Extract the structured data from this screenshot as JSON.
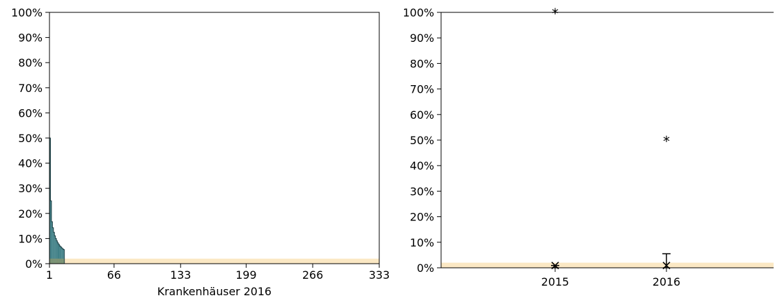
{
  "colors": {
    "bar_fill": "#3f7f86",
    "bar_stroke": "#1c3f44",
    "reference_band": "#fbe8c4",
    "reference_overlap": "#8a9670",
    "axis": "#000000"
  },
  "chart_data": [
    {
      "type": "bar",
      "xlabel": "Krankenhäuser 2016",
      "ylabel": "",
      "title": "",
      "ylim": [
        0,
        100
      ],
      "xlim": [
        1,
        333
      ],
      "y_ticks": [
        "0%",
        "10%",
        "20%",
        "30%",
        "40%",
        "50%",
        "60%",
        "70%",
        "80%",
        "90%",
        "100%"
      ],
      "x_ticks": [
        "1",
        "66",
        "133",
        "199",
        "266",
        "333"
      ],
      "x_tick_values": [
        1,
        66,
        133,
        199,
        266,
        333
      ],
      "reference_band": [
        0,
        2
      ],
      "values": [
        50,
        25,
        16.7,
        14.3,
        12.5,
        11.1,
        10,
        9.1,
        8.3,
        7.7,
        7.1,
        6.7,
        6.3,
        5.9,
        5.6
      ],
      "grid": false
    },
    {
      "type": "scatter",
      "xlabel": "",
      "ylabel": "",
      "title": "",
      "ylim": [
        0,
        100
      ],
      "categories": [
        "2015",
        "2016"
      ],
      "y_ticks": [
        "0%",
        "10%",
        "20%",
        "30%",
        "40%",
        "50%",
        "60%",
        "70%",
        "80%",
        "90%",
        "100%"
      ],
      "reference_band": [
        0,
        2
      ],
      "outliers": [
        {
          "category": "2015",
          "value": 100
        },
        {
          "category": "2016",
          "value": 50
        }
      ],
      "central_values": [
        {
          "category": "2015",
          "value": 0.9,
          "ci": [
            0,
            0.9
          ]
        },
        {
          "category": "2016",
          "value": 0.9,
          "ci": [
            0,
            5.5
          ]
        }
      ],
      "grid": false
    }
  ]
}
